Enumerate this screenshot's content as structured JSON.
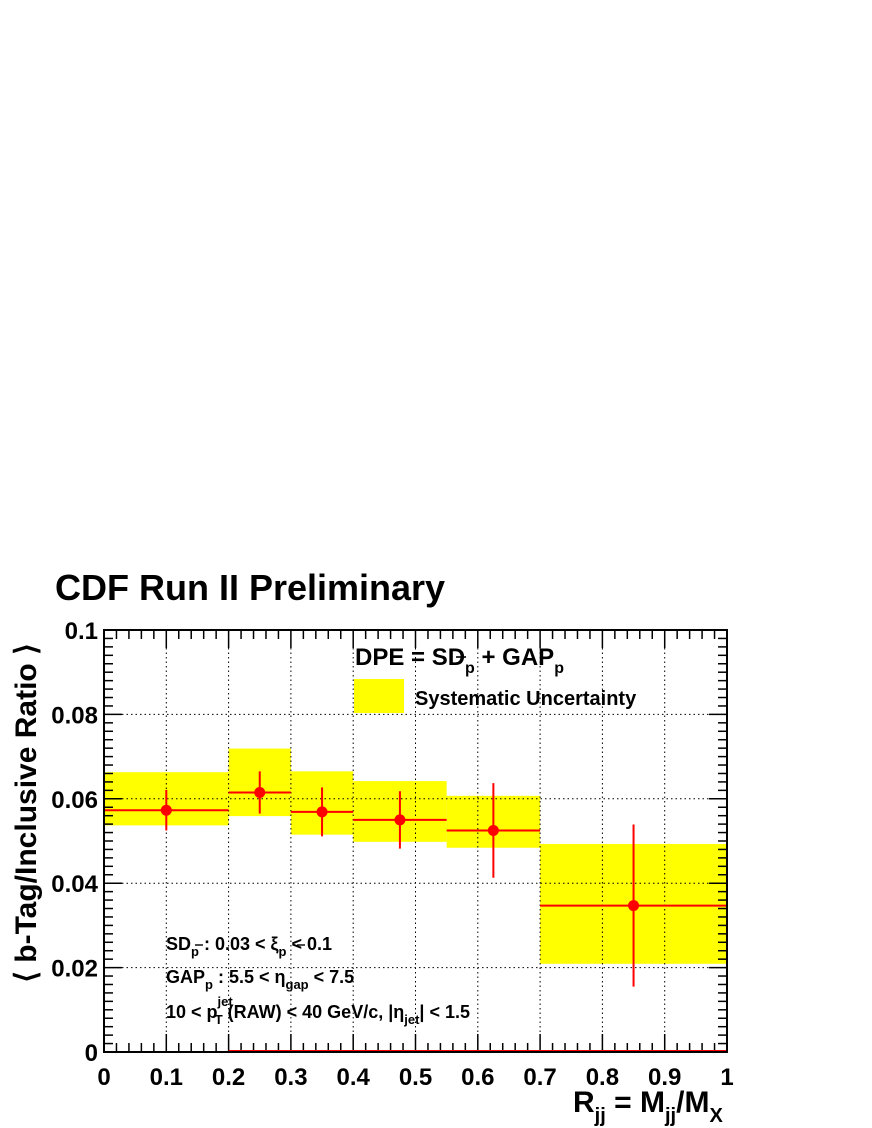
{
  "chart_data": {
    "type": "scatter",
    "title": "CDF Run II Preliminary",
    "xlabel": "R_jj = M_jj/M_X",
    "ylabel": "⟨ b-Tag/Inclusive Ratio ⟩",
    "xlim": [
      0,
      1
    ],
    "ylim": [
      0,
      0.1
    ],
    "grid": true,
    "x_ticks": [
      "0",
      "0.1",
      "0.2",
      "0.3",
      "0.4",
      "0.5",
      "0.6",
      "0.7",
      "0.8",
      "0.9",
      "1"
    ],
    "y_ticks": [
      "0",
      "0.02",
      "0.04",
      "0.06",
      "0.08",
      "0.1"
    ],
    "points": [
      {
        "x": 0.1,
        "y": 0.0573,
        "x_lo": 0.0,
        "x_hi": 0.2,
        "y_err": 0.0048,
        "sys_lo": 0.0537,
        "sys_hi": 0.0663
      },
      {
        "x": 0.25,
        "y": 0.0615,
        "x_lo": 0.2,
        "x_hi": 0.3,
        "y_err": 0.005,
        "sys_lo": 0.0559,
        "sys_hi": 0.0719
      },
      {
        "x": 0.35,
        "y": 0.0569,
        "x_lo": 0.3,
        "x_hi": 0.4,
        "y_err": 0.0058,
        "sys_lo": 0.0515,
        "sys_hi": 0.0665
      },
      {
        "x": 0.475,
        "y": 0.055,
        "x_lo": 0.4,
        "x_hi": 0.55,
        "y_err": 0.0068,
        "sys_lo": 0.0498,
        "sys_hi": 0.0642
      },
      {
        "x": 0.625,
        "y": 0.0525,
        "x_lo": 0.55,
        "x_hi": 0.7,
        "y_err": 0.0112,
        "sys_lo": 0.0484,
        "sys_hi": 0.0607
      },
      {
        "x": 0.85,
        "y": 0.0347,
        "x_lo": 0.7,
        "x_hi": 1.0,
        "y_err": 0.0192,
        "sys_lo": 0.0209,
        "sys_hi": 0.0493
      }
    ],
    "legend": {
      "heading": "DPE = SD_p̄ + GAP_p",
      "entries": [
        {
          "label": "Systematic Uncertainty",
          "color": "#ffff00"
        }
      ],
      "placement": "top-right"
    },
    "annotations": [
      "SD_p̄ : 0.03 < ξ_p̄ < 0.1",
      "GAP_p : 5.5 < η_gap < 7.5",
      "10 < p_T^jet (RAW) < 40 GeV/c,   |η_jet| < 1.5"
    ],
    "colors": {
      "points": "#ff0000",
      "band": "#ffff00"
    }
  }
}
